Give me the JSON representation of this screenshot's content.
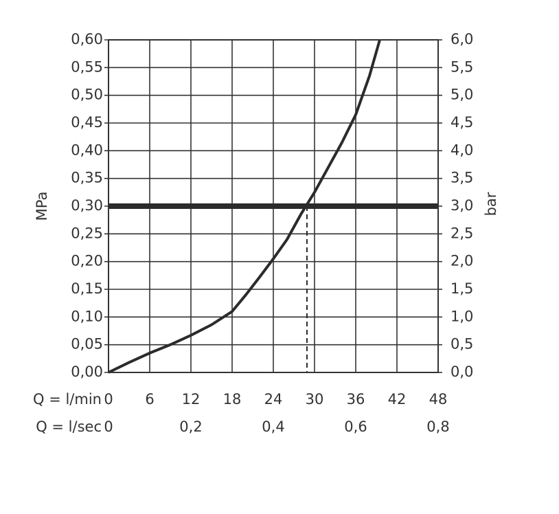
{
  "chart_data": {
    "type": "line",
    "x_label": "Q = l/min",
    "x2_label": "Q = l/sec",
    "y_label": "MPa",
    "y2_label": "bar",
    "xlim": [
      0,
      48
    ],
    "xticks": [
      0,
      6,
      12,
      18,
      24,
      30,
      36,
      42,
      48
    ],
    "x2lim": [
      0,
      0.8
    ],
    "x2ticks": [
      0,
      {
        "value": 0.2,
        "label": "0,2"
      },
      {
        "value": 0.4,
        "label": "0,4"
      },
      {
        "value": 0.6,
        "label": "0,6"
      },
      {
        "value": 0.8,
        "label": "0,8"
      }
    ],
    "ylim": [
      0,
      0.6
    ],
    "yticks": [
      {
        "value": 0,
        "label": "0,00"
      },
      {
        "value": 0.05,
        "label": "0,05"
      },
      {
        "value": 0.1,
        "label": "0,10"
      },
      {
        "value": 0.15,
        "label": "0,15"
      },
      {
        "value": 0.2,
        "label": "0,20"
      },
      {
        "value": 0.25,
        "label": "0,25"
      },
      {
        "value": 0.3,
        "label": "0,30"
      },
      {
        "value": 0.35,
        "label": "0,35"
      },
      {
        "value": 0.4,
        "label": "0,40"
      },
      {
        "value": 0.45,
        "label": "0,45"
      },
      {
        "value": 0.5,
        "label": "0,50"
      },
      {
        "value": 0.55,
        "label": "0,55"
      },
      {
        "value": 0.6,
        "label": "0,60"
      }
    ],
    "y2lim": [
      0,
      6
    ],
    "y2ticks": [
      {
        "value": 0,
        "label": "0,0"
      },
      {
        "value": 0.5,
        "label": "0,5"
      },
      {
        "value": 1,
        "label": "1,0"
      },
      {
        "value": 1.5,
        "label": "1,5"
      },
      {
        "value": 2,
        "label": "2,0"
      },
      {
        "value": 2.5,
        "label": "2,5"
      },
      {
        "value": 3,
        "label": "3,0"
      },
      {
        "value": 3.5,
        "label": "3,5"
      },
      {
        "value": 4,
        "label": "4,0"
      },
      {
        "value": 4.5,
        "label": "4,5"
      },
      {
        "value": 5,
        "label": "5,0"
      },
      {
        "value": 5.5,
        "label": "5,5"
      },
      {
        "value": 6,
        "label": "6,0"
      }
    ],
    "grid": true,
    "reference_y": 0.3,
    "reference_x": 28.9,
    "series": [
      {
        "color": "#2b2b2b",
        "x": [
          0,
          3,
          6,
          9,
          12,
          15,
          18,
          20,
          22,
          24,
          26,
          28,
          30,
          32,
          34,
          36,
          38,
          39.5
        ],
        "values": [
          0,
          0.018,
          0.035,
          0.05,
          0.067,
          0.086,
          0.11,
          0.14,
          0.172,
          0.205,
          0.24,
          0.285,
          0.325,
          0.37,
          0.415,
          0.465,
          0.535,
          0.6
        ]
      }
    ]
  }
}
